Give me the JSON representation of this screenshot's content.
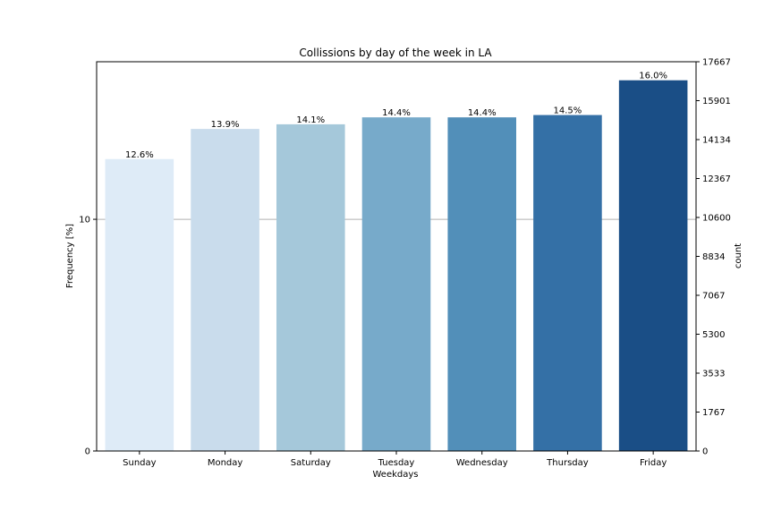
{
  "chart_data": {
    "type": "bar",
    "title": "Collissions by day of the week in LA",
    "xlabel": "Weekdays",
    "ylabel": "Frequency [%]",
    "y2label": "count",
    "categories": [
      "Sunday",
      "Monday",
      "Saturday",
      "Tuesday",
      "Wednesday",
      "Thursday",
      "Friday"
    ],
    "values": [
      12.6,
      13.9,
      14.1,
      14.4,
      14.4,
      14.5,
      16.0
    ],
    "value_labels": [
      "12.6%",
      "13.9%",
      "14.1%",
      "14.4%",
      "14.4%",
      "14.5%",
      "16.0%"
    ],
    "colors": [
      "#deebf7",
      "#c9dcec",
      "#a5c8da",
      "#77aaca",
      "#528fb9",
      "#3470a6",
      "#1a4e86"
    ],
    "ylim": [
      0,
      16.8
    ],
    "yticks": [
      0,
      10
    ],
    "ytick_labels": [
      "0",
      "10"
    ],
    "y2lim": [
      0,
      17667
    ],
    "y2ticks": [
      0,
      1767,
      3533,
      5300,
      7067,
      8834,
      10600,
      12367,
      14134,
      15901,
      17667
    ],
    "y2tick_labels": [
      "0",
      "1767",
      "3533",
      "5300",
      "7067",
      "8834",
      "10600",
      "12367",
      "14134",
      "15901",
      "17667"
    ],
    "grid": "horizontal line at y=10",
    "grid_color": "#b0b0b0",
    "legend": "none"
  }
}
